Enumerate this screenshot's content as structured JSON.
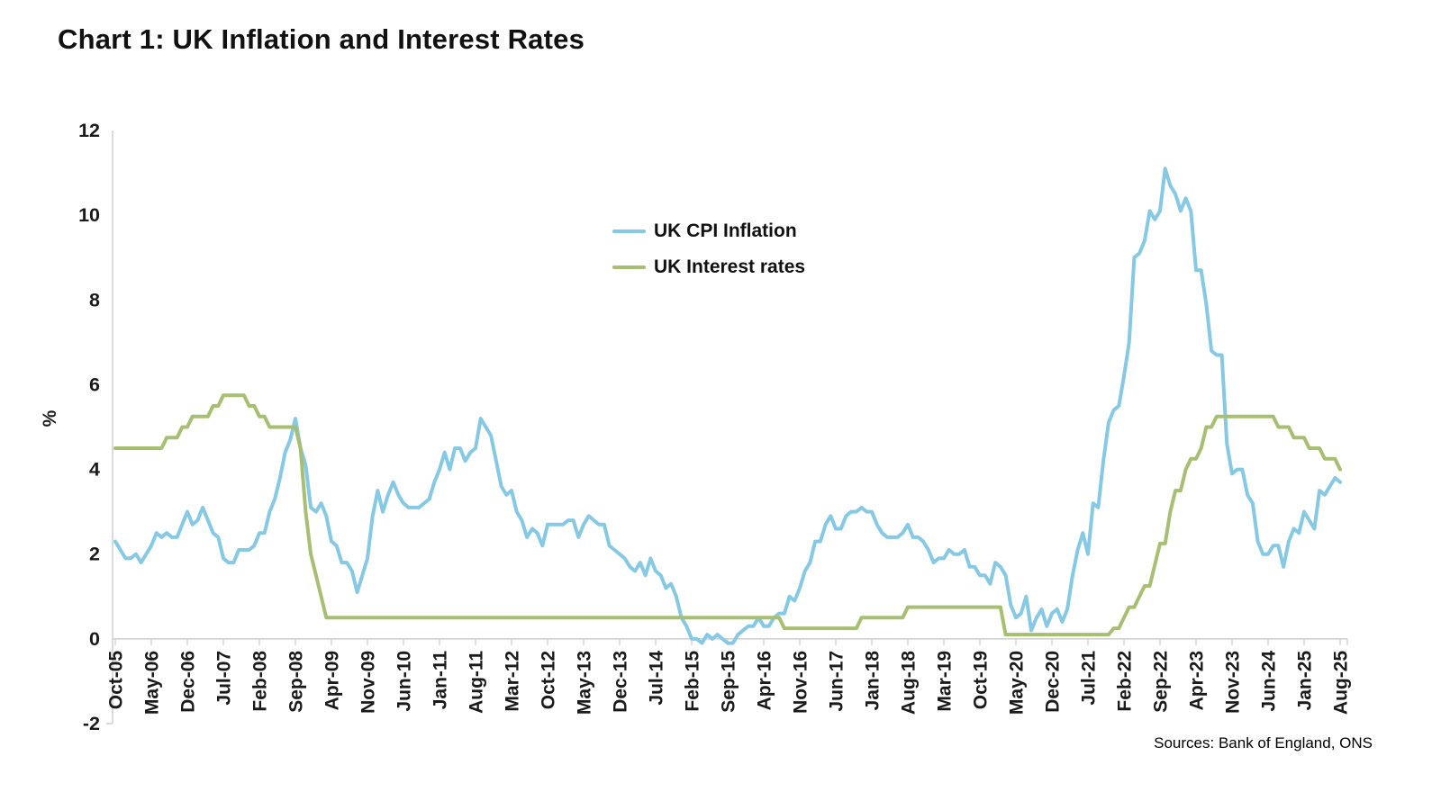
{
  "chart_data": {
    "type": "line",
    "title": "Chart 1: UK Inflation and Interest Rates",
    "ylabel": "%",
    "ylim": [
      -2,
      12
    ],
    "yticks": [
      12,
      10,
      8,
      6,
      4,
      2,
      0,
      -2
    ],
    "grid": false,
    "legend_position": "inside-upper-middle",
    "x_frequency": "monthly",
    "x_start": "Oct-2005",
    "x_end": "Aug-2025",
    "xtick_step_months": 7,
    "xtick_labels": [
      "Oct-05",
      "May-06",
      "Dec-06",
      "Jul-07",
      "Feb-08",
      "Sep-08",
      "Apr-09",
      "Nov-09",
      "Jun-10",
      "Jan-11",
      "Aug-11",
      "Mar-12",
      "Oct-12",
      "May-13",
      "Dec-13",
      "Jul-14",
      "Feb-15",
      "Sep-15",
      "Apr-16",
      "Nov-16",
      "Jun-17",
      "Jan-18",
      "Aug-18",
      "Mar-19",
      "Oct-19",
      "May-20",
      "Dec-20",
      "Jul-21",
      "Feb-22",
      "Sep-22",
      "Apr-23",
      "Nov-23",
      "Jun-24",
      "Jan-25",
      "Aug-25"
    ],
    "series": [
      {
        "name": "UK CPI Inflation",
        "color": "#85C9E4",
        "values": [
          2.3,
          2.1,
          1.9,
          1.9,
          2.0,
          1.8,
          2.0,
          2.2,
          2.5,
          2.4,
          2.5,
          2.4,
          2.4,
          2.7,
          3.0,
          2.7,
          2.8,
          3.1,
          2.8,
          2.5,
          2.4,
          1.9,
          1.8,
          1.8,
          2.1,
          2.1,
          2.1,
          2.2,
          2.5,
          2.5,
          3.0,
          3.3,
          3.8,
          4.4,
          4.7,
          5.2,
          4.5,
          4.1,
          3.1,
          3.0,
          3.2,
          2.9,
          2.3,
          2.2,
          1.8,
          1.8,
          1.6,
          1.1,
          1.5,
          1.9,
          2.9,
          3.5,
          3.0,
          3.4,
          3.7,
          3.4,
          3.2,
          3.1,
          3.1,
          3.1,
          3.2,
          3.3,
          3.7,
          4.0,
          4.4,
          4.0,
          4.5,
          4.5,
          4.2,
          4.4,
          4.5,
          5.2,
          5.0,
          4.8,
          4.2,
          3.6,
          3.4,
          3.5,
          3.0,
          2.8,
          2.4,
          2.6,
          2.5,
          2.2,
          2.7,
          2.7,
          2.7,
          2.7,
          2.8,
          2.8,
          2.4,
          2.7,
          2.9,
          2.8,
          2.7,
          2.7,
          2.2,
          2.1,
          2.0,
          1.9,
          1.7,
          1.6,
          1.8,
          1.5,
          1.9,
          1.6,
          1.5,
          1.2,
          1.3,
          1.0,
          0.5,
          0.3,
          0.0,
          0.0,
          -0.1,
          0.1,
          0.0,
          0.1,
          0.0,
          -0.1,
          -0.1,
          0.1,
          0.2,
          0.3,
          0.3,
          0.5,
          0.3,
          0.3,
          0.5,
          0.6,
          0.6,
          1.0,
          0.9,
          1.2,
          1.6,
          1.8,
          2.3,
          2.3,
          2.7,
          2.9,
          2.6,
          2.6,
          2.9,
          3.0,
          3.0,
          3.1,
          3.0,
          3.0,
          2.7,
          2.5,
          2.4,
          2.4,
          2.4,
          2.5,
          2.7,
          2.4,
          2.4,
          2.3,
          2.1,
          1.8,
          1.9,
          1.9,
          2.1,
          2.0,
          2.0,
          2.1,
          1.7,
          1.7,
          1.5,
          1.5,
          1.3,
          1.8,
          1.7,
          1.5,
          0.8,
          0.5,
          0.6,
          1.0,
          0.2,
          0.5,
          0.7,
          0.3,
          0.6,
          0.7,
          0.4,
          0.7,
          1.5,
          2.1,
          2.5,
          2.0,
          3.2,
          3.1,
          4.2,
          5.1,
          5.4,
          5.5,
          6.2,
          7.0,
          9.0,
          9.1,
          9.4,
          10.1,
          9.9,
          10.1,
          11.1,
          10.7,
          10.5,
          10.1,
          10.4,
          10.1,
          8.7,
          8.7,
          7.9,
          6.8,
          6.7,
          6.7,
          4.6,
          3.9,
          4.0,
          4.0,
          3.4,
          3.2,
          2.3,
          2.0,
          2.0,
          2.2,
          2.2,
          1.7,
          2.3,
          2.6,
          2.5,
          3.0,
          2.8,
          2.6,
          3.5,
          3.4,
          3.6,
          3.8,
          3.7
        ]
      },
      {
        "name": "UK Interest rates",
        "color": "#A6BF71",
        "values": [
          4.5,
          4.5,
          4.5,
          4.5,
          4.5,
          4.5,
          4.5,
          4.5,
          4.5,
          4.5,
          4.75,
          4.75,
          4.75,
          5.0,
          5.0,
          5.25,
          5.25,
          5.25,
          5.25,
          5.5,
          5.5,
          5.75,
          5.75,
          5.75,
          5.75,
          5.75,
          5.5,
          5.5,
          5.25,
          5.25,
          5.0,
          5.0,
          5.0,
          5.0,
          5.0,
          5.0,
          4.5,
          3.0,
          2.0,
          1.5,
          1.0,
          0.5,
          0.5,
          0.5,
          0.5,
          0.5,
          0.5,
          0.5,
          0.5,
          0.5,
          0.5,
          0.5,
          0.5,
          0.5,
          0.5,
          0.5,
          0.5,
          0.5,
          0.5,
          0.5,
          0.5,
          0.5,
          0.5,
          0.5,
          0.5,
          0.5,
          0.5,
          0.5,
          0.5,
          0.5,
          0.5,
          0.5,
          0.5,
          0.5,
          0.5,
          0.5,
          0.5,
          0.5,
          0.5,
          0.5,
          0.5,
          0.5,
          0.5,
          0.5,
          0.5,
          0.5,
          0.5,
          0.5,
          0.5,
          0.5,
          0.5,
          0.5,
          0.5,
          0.5,
          0.5,
          0.5,
          0.5,
          0.5,
          0.5,
          0.5,
          0.5,
          0.5,
          0.5,
          0.5,
          0.5,
          0.5,
          0.5,
          0.5,
          0.5,
          0.5,
          0.5,
          0.5,
          0.5,
          0.5,
          0.5,
          0.5,
          0.5,
          0.5,
          0.5,
          0.5,
          0.5,
          0.5,
          0.5,
          0.5,
          0.5,
          0.5,
          0.5,
          0.5,
          0.5,
          0.5,
          0.25,
          0.25,
          0.25,
          0.25,
          0.25,
          0.25,
          0.25,
          0.25,
          0.25,
          0.25,
          0.25,
          0.25,
          0.25,
          0.25,
          0.25,
          0.5,
          0.5,
          0.5,
          0.5,
          0.5,
          0.5,
          0.5,
          0.5,
          0.5,
          0.75,
          0.75,
          0.75,
          0.75,
          0.75,
          0.75,
          0.75,
          0.75,
          0.75,
          0.75,
          0.75,
          0.75,
          0.75,
          0.75,
          0.75,
          0.75,
          0.75,
          0.75,
          0.75,
          0.1,
          0.1,
          0.1,
          0.1,
          0.1,
          0.1,
          0.1,
          0.1,
          0.1,
          0.1,
          0.1,
          0.1,
          0.1,
          0.1,
          0.1,
          0.1,
          0.1,
          0.1,
          0.1,
          0.1,
          0.1,
          0.25,
          0.25,
          0.5,
          0.75,
          0.75,
          1.0,
          1.25,
          1.25,
          1.75,
          2.25,
          2.25,
          3.0,
          3.5,
          3.5,
          4.0,
          4.25,
          4.25,
          4.5,
          5.0,
          5.0,
          5.25,
          5.25,
          5.25,
          5.25,
          5.25,
          5.25,
          5.25,
          5.25,
          5.25,
          5.25,
          5.25,
          5.25,
          5.0,
          5.0,
          5.0,
          4.75,
          4.75,
          4.75,
          4.5,
          4.5,
          4.5,
          4.25,
          4.25,
          4.25,
          4.0
        ]
      }
    ],
    "sources": "Sources: Bank of England, ONS"
  },
  "colors": {
    "axis": "#D2D2D2",
    "text": "#1A1A1A",
    "cpi_line": "#85C9E4",
    "interest_line": "#A6BF71"
  }
}
